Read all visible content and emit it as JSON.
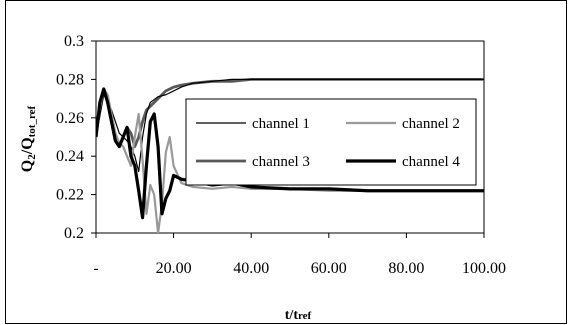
{
  "chart_data": {
    "type": "line",
    "title": "",
    "xlabel": {
      "main": "t/t",
      "sub": "ref"
    },
    "ylabel": {
      "q": "Q",
      "two": "2",
      "slash": "/Q",
      "sub": "tot_ref"
    },
    "xlim": [
      0,
      100
    ],
    "ylim": [
      0.2,
      0.3
    ],
    "x_ticks": [
      0,
      20,
      40,
      60,
      80,
      100
    ],
    "x_tick_labels": [
      "-",
      "20.00",
      "40.00",
      "60.00",
      "80.00",
      "100.00"
    ],
    "y_ticks": [
      0.2,
      0.22,
      0.24,
      0.26,
      0.28,
      0.3
    ],
    "y_tick_labels": [
      "0.2",
      "0.22",
      "0.24",
      "0.26",
      "0.28",
      "0.3"
    ],
    "grid": false,
    "legend_position": "right",
    "series": [
      {
        "name": "channel 1",
        "color": "#000000",
        "width": 1.2,
        "x": [
          0,
          2,
          4,
          6,
          8,
          9,
          10,
          11,
          12,
          13,
          14,
          16,
          18,
          20,
          22,
          25,
          30,
          35,
          40,
          50,
          60,
          70,
          80,
          90,
          100
        ],
        "y": [
          0.25,
          0.272,
          0.264,
          0.252,
          0.248,
          0.245,
          0.24,
          0.232,
          0.25,
          0.262,
          0.268,
          0.271,
          0.272,
          0.274,
          0.276,
          0.278,
          0.279,
          0.28,
          0.28,
          0.28,
          0.28,
          0.28,
          0.28,
          0.28,
          0.28
        ]
      },
      {
        "name": "channel 2",
        "color": "#999999",
        "width": 2.2,
        "x": [
          0,
          1,
          2,
          3,
          4,
          5,
          6,
          7,
          8,
          9,
          10,
          11,
          12,
          13,
          14,
          15,
          16,
          17,
          18,
          19,
          20,
          22,
          25,
          30,
          35,
          40,
          50,
          60,
          70,
          80,
          90,
          100
        ],
        "y": [
          0.25,
          0.265,
          0.275,
          0.272,
          0.262,
          0.252,
          0.247,
          0.245,
          0.24,
          0.235,
          0.25,
          0.262,
          0.238,
          0.21,
          0.225,
          0.22,
          0.2,
          0.215,
          0.242,
          0.25,
          0.235,
          0.226,
          0.224,
          0.223,
          0.224,
          0.223,
          0.223,
          0.222,
          0.222,
          0.222,
          0.222,
          0.222
        ]
      },
      {
        "name": "channel 3",
        "color": "#595959",
        "width": 2.8,
        "x": [
          0,
          1,
          2,
          3,
          4,
          5,
          6,
          7,
          8,
          9,
          10,
          11,
          12,
          13,
          14,
          15,
          16,
          17,
          18,
          19,
          20,
          22,
          25,
          30,
          35,
          40,
          50,
          60,
          70,
          80,
          90,
          100
        ],
        "y": [
          0.25,
          0.268,
          0.275,
          0.268,
          0.258,
          0.248,
          0.245,
          0.25,
          0.255,
          0.252,
          0.245,
          0.25,
          0.258,
          0.264,
          0.266,
          0.268,
          0.27,
          0.272,
          0.274,
          0.275,
          0.276,
          0.277,
          0.278,
          0.279,
          0.279,
          0.28,
          0.28,
          0.28,
          0.28,
          0.28,
          0.28,
          0.28
        ]
      },
      {
        "name": "channel 4",
        "color": "#000000",
        "width": 3.2,
        "x": [
          0,
          1,
          2,
          3,
          4,
          5,
          6,
          7,
          8,
          9,
          10,
          11,
          12,
          13,
          14,
          15,
          16,
          17,
          18,
          19,
          20,
          22,
          25,
          30,
          35,
          40,
          50,
          60,
          70,
          80,
          90,
          100
        ],
        "y": [
          0.25,
          0.268,
          0.275,
          0.268,
          0.258,
          0.248,
          0.245,
          0.25,
          0.255,
          0.24,
          0.235,
          0.222,
          0.208,
          0.235,
          0.258,
          0.262,
          0.245,
          0.21,
          0.218,
          0.222,
          0.23,
          0.228,
          0.227,
          0.225,
          0.226,
          0.224,
          0.223,
          0.223,
          0.222,
          0.222,
          0.222,
          0.222
        ]
      }
    ]
  }
}
